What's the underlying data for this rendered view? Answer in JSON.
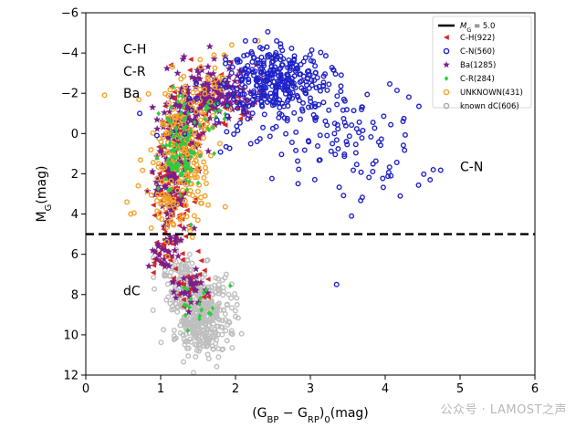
{
  "chart_data": {
    "type": "scatter",
    "xlabel": "(G_BP − G_RP)_0(mag)",
    "ylabel": "M_G(mag)",
    "xlim": [
      0,
      6
    ],
    "ylim": [
      12,
      -6
    ],
    "y_inverted": true,
    "xticks": [
      0,
      1,
      2,
      3,
      4,
      5,
      6
    ],
    "yticks": [
      -6,
      -4,
      -2,
      0,
      2,
      4,
      6,
      8,
      10,
      12
    ],
    "grid": false,
    "legend_position": "top-right",
    "hline": {
      "y": 5.0,
      "label": "M_G = 5.0",
      "style": "dashed",
      "color": "#000000"
    },
    "series": [
      {
        "name": "C-H(922)",
        "marker": "triangle-left",
        "color": "#d62728",
        "clusters": [
          {
            "n": 80,
            "cx": 1.15,
            "cy": 3.2,
            "sx": 0.12,
            "sy": 1.0
          },
          {
            "n": 60,
            "cx": 1.3,
            "cy": 0.2,
            "sx": 0.14,
            "sy": 1.2
          },
          {
            "n": 50,
            "cx": 1.7,
            "cy": -1.9,
            "sx": 0.3,
            "sy": 0.7
          },
          {
            "n": 25,
            "cx": 1.0,
            "cy": 5.6,
            "sx": 0.1,
            "sy": 0.5
          },
          {
            "n": 25,
            "cx": 1.35,
            "cy": 7.4,
            "sx": 0.14,
            "sy": 0.6
          }
        ]
      },
      {
        "name": "C-N(560)",
        "marker": "circle-open",
        "color": "#1f22c9",
        "clusters": [
          {
            "n": 300,
            "cx": 2.55,
            "cy": -2.7,
            "sx": 0.35,
            "sy": 0.8
          },
          {
            "n": 110,
            "cx": 3.1,
            "cy": -0.6,
            "sx": 0.55,
            "sy": 1.2
          },
          {
            "n": 30,
            "cx": 3.9,
            "cy": 1.6,
            "sx": 0.45,
            "sy": 1.0
          },
          {
            "n": 15,
            "cx": 2.0,
            "cy": -0.5,
            "sx": 0.25,
            "sy": 1.0
          }
        ],
        "points": [
          [
            4.6,
            2.3
          ],
          [
            4.45,
            -1.35
          ],
          [
            3.35,
            7.5
          ],
          [
            4.2,
            3.1
          ],
          [
            3.55,
            4.1
          ],
          [
            0.72,
            -1.0
          ],
          [
            2.55,
            -4.6
          ],
          [
            0.95,
            0.1
          ]
        ]
      },
      {
        "name": "Ba(1285)",
        "marker": "star",
        "color": "#7a1f8a",
        "clusters": [
          {
            "n": 140,
            "cx": 1.75,
            "cy": -2.0,
            "sx": 0.28,
            "sy": 0.7
          },
          {
            "n": 100,
            "cx": 1.3,
            "cy": -0.1,
            "sx": 0.16,
            "sy": 1.1
          },
          {
            "n": 70,
            "cx": 1.15,
            "cy": 2.8,
            "sx": 0.12,
            "sy": 1.1
          },
          {
            "n": 25,
            "cx": 1.05,
            "cy": 5.8,
            "sx": 0.1,
            "sy": 0.5
          },
          {
            "n": 30,
            "cx": 1.4,
            "cy": 7.6,
            "sx": 0.15,
            "sy": 0.6
          }
        ]
      },
      {
        "name": "C-R(284)",
        "marker": "diamond",
        "color": "#2ecc40",
        "clusters": [
          {
            "n": 90,
            "cx": 1.25,
            "cy": 0.9,
            "sx": 0.13,
            "sy": 1.1
          },
          {
            "n": 30,
            "cx": 1.5,
            "cy": -1.2,
            "sx": 0.2,
            "sy": 0.6
          },
          {
            "n": 20,
            "cx": 1.5,
            "cy": 8.6,
            "sx": 0.18,
            "sy": 0.5
          }
        ]
      },
      {
        "name": "UNKNOWN(431)",
        "marker": "circle-open",
        "color": "#f2a32a",
        "clusters": [
          {
            "n": 160,
            "cx": 1.3,
            "cy": 0.6,
            "sx": 0.18,
            "sy": 1.4
          },
          {
            "n": 60,
            "cx": 1.15,
            "cy": 3.3,
            "sx": 0.2,
            "sy": 1.0
          },
          {
            "n": 30,
            "cx": 1.6,
            "cy": -2.3,
            "sx": 0.3,
            "sy": 0.8
          }
        ],
        "points": [
          [
            0.25,
            -1.9
          ],
          [
            0.55,
            3.4
          ],
          [
            0.6,
            4.0
          ],
          [
            2.3,
            -4.6
          ],
          [
            0.7,
            2.6
          ],
          [
            1.85,
            -3.9
          ],
          [
            1.95,
            -4.4
          ]
        ]
      },
      {
        "name": "known dC(606)",
        "marker": "circle-open",
        "color": "#a9a9a9",
        "clusters": [
          {
            "n": 340,
            "cx": 1.55,
            "cy": 8.9,
            "sx": 0.2,
            "sy": 0.9
          },
          {
            "n": 80,
            "cx": 1.25,
            "cy": 7.1,
            "sx": 0.14,
            "sy": 0.7
          },
          {
            "n": 40,
            "cx": 1.5,
            "cy": 10.1,
            "sx": 0.15,
            "sy": 0.6
          }
        ]
      }
    ],
    "annotations": [
      {
        "text": "C-H",
        "x": 0.5,
        "y": -4.2
      },
      {
        "text": "C-R",
        "x": 0.5,
        "y": -3.1
      },
      {
        "text": "Ba",
        "x": 0.5,
        "y": -2.0
      },
      {
        "text": "C-N",
        "x": 5.0,
        "y": 1.65
      },
      {
        "text": "dC",
        "x": 0.5,
        "y": 7.8
      }
    ]
  },
  "watermark": "公众号 · LAMOST之声"
}
